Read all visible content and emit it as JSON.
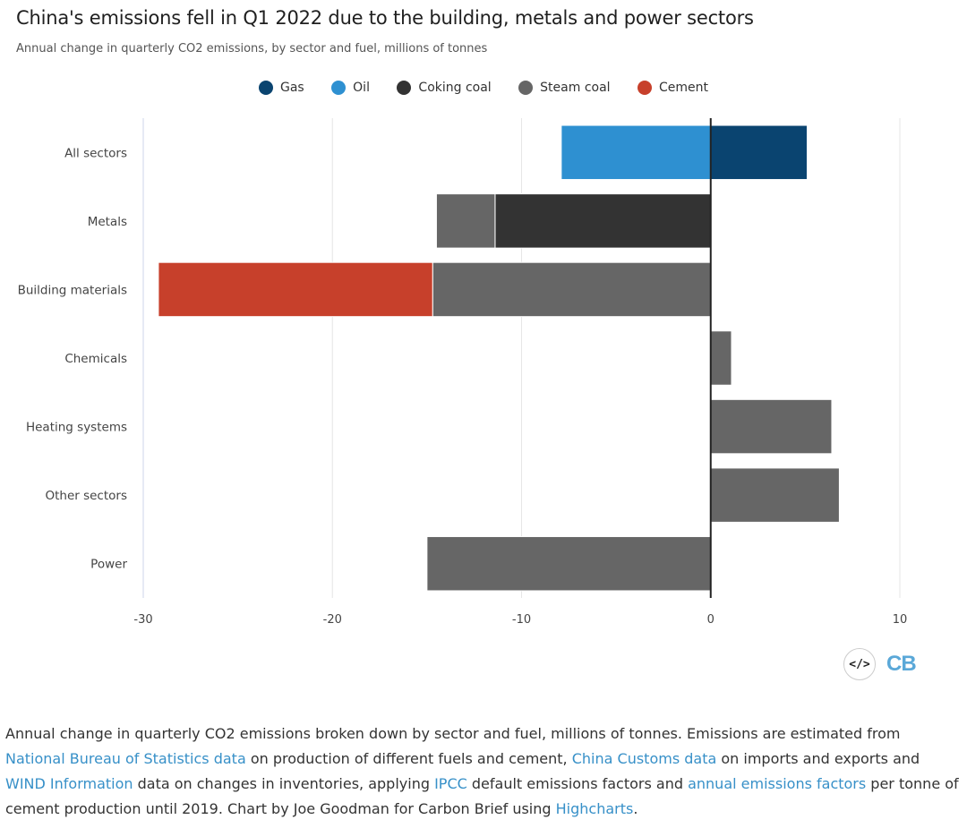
{
  "title": "China's emissions fell in Q1 2022 due to the building, metals and power sectors",
  "subtitle": "Annual change in quarterly CO2 emissions, by sector and fuel, millions of tonnes",
  "legend": [
    {
      "name": "Gas",
      "color": "#0a4470"
    },
    {
      "name": "Oil",
      "color": "#2e90d1"
    },
    {
      "name": "Coking coal",
      "color": "#333333"
    },
    {
      "name": "Steam coal",
      "color": "#666666"
    },
    {
      "name": "Cement",
      "color": "#c7402b"
    }
  ],
  "chart_data": {
    "type": "bar",
    "orientation": "horizontal",
    "stacked": true,
    "categories": [
      "All sectors",
      "Metals",
      "Building materials",
      "Chemicals",
      "Heating systems",
      "Other sectors",
      "Power"
    ],
    "series": [
      {
        "name": "Gas",
        "color": "#0a4470",
        "values": [
          5.1,
          0,
          0,
          0,
          0,
          0,
          0
        ]
      },
      {
        "name": "Oil",
        "color": "#2e90d1",
        "values": [
          -7.9,
          0,
          0,
          0,
          0,
          0,
          0
        ]
      },
      {
        "name": "Coking coal",
        "color": "#333333",
        "values": [
          0,
          -11.4,
          0,
          0,
          0,
          0,
          0
        ]
      },
      {
        "name": "Steam coal",
        "color": "#666666",
        "values": [
          0,
          -3.1,
          -14.7,
          1.1,
          6.4,
          6.8,
          -15.0
        ]
      },
      {
        "name": "Cement",
        "color": "#c7402b",
        "values": [
          0,
          0,
          -14.5,
          0,
          0,
          0,
          0
        ]
      }
    ],
    "xlim": [
      -30,
      10
    ],
    "xticks": [
      "-30",
      "-20",
      "-10",
      "0",
      "10"
    ],
    "grid": true,
    "legend_position": "top-center"
  },
  "icons": {
    "embed": "</>",
    "logo": "CB"
  },
  "caption": {
    "t1": "Annual change in quarterly CO2 emissions broken down by sector and fuel, millions of tonnes. Emissions are estimated from ",
    "l1": "National Bureau of Statistics data",
    "t2": " on production of different fuels and cement, ",
    "l2": "China Customs data",
    "t3": " on imports and exports and ",
    "l3": "WIND Information",
    "t4": " data on changes in inventories, applying ",
    "l4": "IPCC",
    "t5": " default emissions factors and ",
    "l5": "annual emissions factors",
    "t6": " per tonne of cement production until 2019. Chart by Joe Goodman for Carbon Brief using ",
    "l6": "Highcharts",
    "t7": "."
  }
}
